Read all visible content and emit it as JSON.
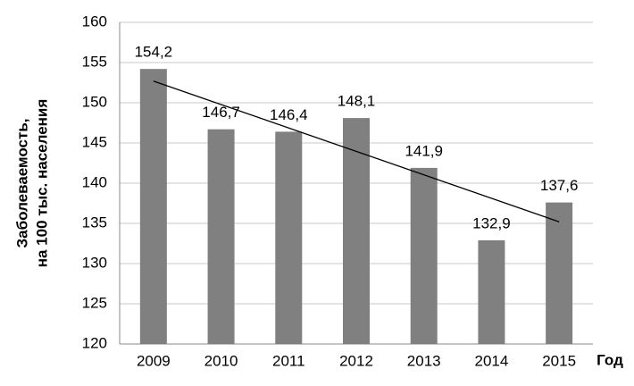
{
  "chart_data": {
    "type": "bar",
    "categories": [
      "2009",
      "2010",
      "2011",
      "2012",
      "2013",
      "2014",
      "2015"
    ],
    "values": [
      154.2,
      146.7,
      146.4,
      148.1,
      141.9,
      132.9,
      137.6
    ],
    "value_labels": [
      "154,2",
      "146,7",
      "146,4",
      "148,1",
      "141,9",
      "132,9",
      "137,6"
    ],
    "color": "#808080",
    "ylim": [
      120,
      160
    ],
    "yticks": [
      120,
      125,
      130,
      135,
      140,
      145,
      150,
      155,
      160
    ],
    "grid": true,
    "ylabel": [
      "Заболеваемость,",
      "на 100 тыс. населения"
    ],
    "xlabel": "Год",
    "trendline": {
      "values": [
        152.7,
        135.2
      ],
      "color": "#000000"
    }
  }
}
